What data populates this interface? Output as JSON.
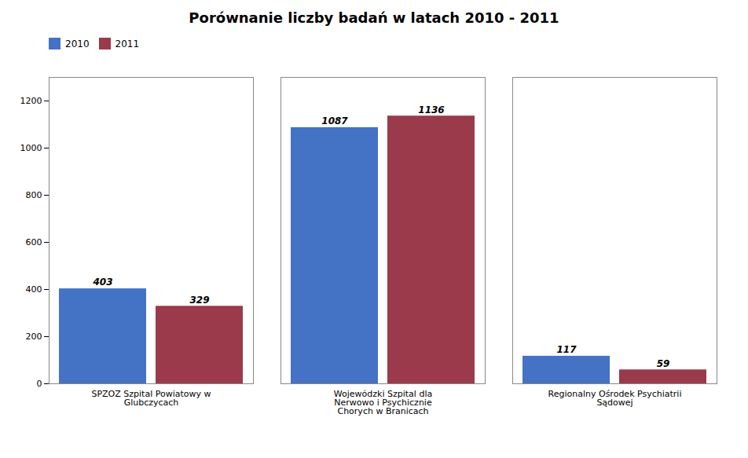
{
  "chart_data": {
    "type": "bar",
    "title": "Porównanie liczby badań w latach 2010 - 2011",
    "categories": [
      "SPZOZ Szpital Powiatowy w\nGlubczycach",
      "Wojewódzki Szpital dla\nNerwowo i Psychicznie\nChorych w Branicach",
      "Regionalny Ośrodek Psychiatrii\nSądowej"
    ],
    "series": [
      {
        "name": "2010",
        "color": "#4472C4",
        "values": [
          403,
          1087,
          117
        ]
      },
      {
        "name": "2011",
        "color": "#9B3A4A",
        "values": [
          329,
          1136,
          59
        ]
      }
    ],
    "ylim": [
      0,
      1300
    ],
    "yticks": [
      0,
      200,
      400,
      600,
      800,
      1000,
      1200
    ],
    "grid": false,
    "legend": "upper right",
    "data_labels": true
  }
}
